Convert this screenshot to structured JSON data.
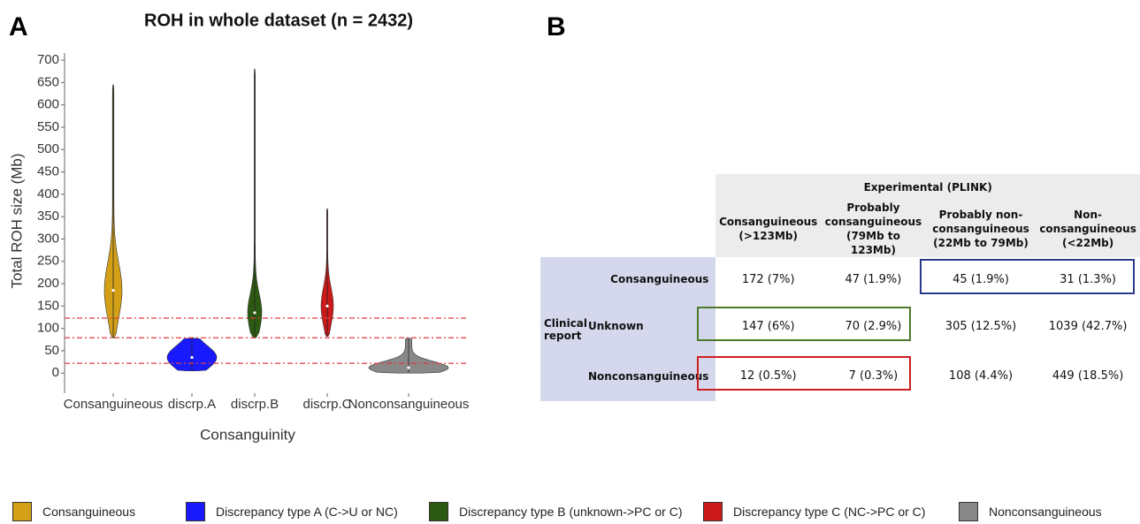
{
  "panel_labels": [
    "A",
    "B"
  ],
  "chart_data": {
    "type": "violin",
    "title": "ROH in whole dataset (n = 2432)",
    "x_label": "Consanguinity",
    "y_label": "Total ROH size (Mb)",
    "categories": [
      "Consanguineous",
      "discrp.A",
      "discrp.B",
      "discrp.C",
      "Nonconsanguineous"
    ],
    "series": [
      {
        "name": "Consanguineous",
        "color": "#d4a017",
        "min": 79,
        "median": 185,
        "max": 645
      },
      {
        "name": "Discrepancy type A (C->U or NC)",
        "color": "#1a1aff",
        "min": 5,
        "median": 35,
        "max": 78
      },
      {
        "name": "Discrepancy type B (unknown->PC or C)",
        "color": "#2d5a12",
        "min": 79,
        "median": 135,
        "max": 680
      },
      {
        "name": "Discrepancy type C (NC->PC or C)",
        "color": "#cc1a1a",
        "min": 82,
        "median": 150,
        "max": 368
      },
      {
        "name": "Nonconsanguineous",
        "color": "#888888",
        "min": 0,
        "median": 12,
        "max": 78
      }
    ],
    "ylim": [
      -45,
      712
    ],
    "yticks": [
      0,
      50,
      100,
      150,
      200,
      250,
      300,
      350,
      400,
      450,
      500,
      550,
      600,
      650,
      700
    ],
    "hlines": [
      22,
      79,
      123
    ],
    "hline_color": "#e03c3c"
  },
  "table": {
    "column_group": "Experimental (PLINK)",
    "columns": [
      "Consanguineous (>123Mb)",
      "Probably consanguineous (79Mb to 123Mb)",
      "Probably non-consanguineous (22Mb to 79Mb)",
      "Non-consanguineous (<22Mb)"
    ],
    "row_group": "Clinical report",
    "rows": [
      {
        "label": "Consanguineous",
        "cells": [
          "172 (7%)",
          "47 (1.9%)",
          "45 (1.9%)",
          "31 (1.3%)"
        ]
      },
      {
        "label": "Unknown",
        "cells": [
          "147 (6%)",
          "70 (2.9%)",
          "305 (12.5%)",
          "1039 (42.7%)"
        ]
      },
      {
        "label": "Nonconsanguineous",
        "cells": [
          "12 (0.5%)",
          "7 (0.3%)",
          "108 (4.4%)",
          "449 (18.5%)"
        ]
      }
    ]
  }
}
